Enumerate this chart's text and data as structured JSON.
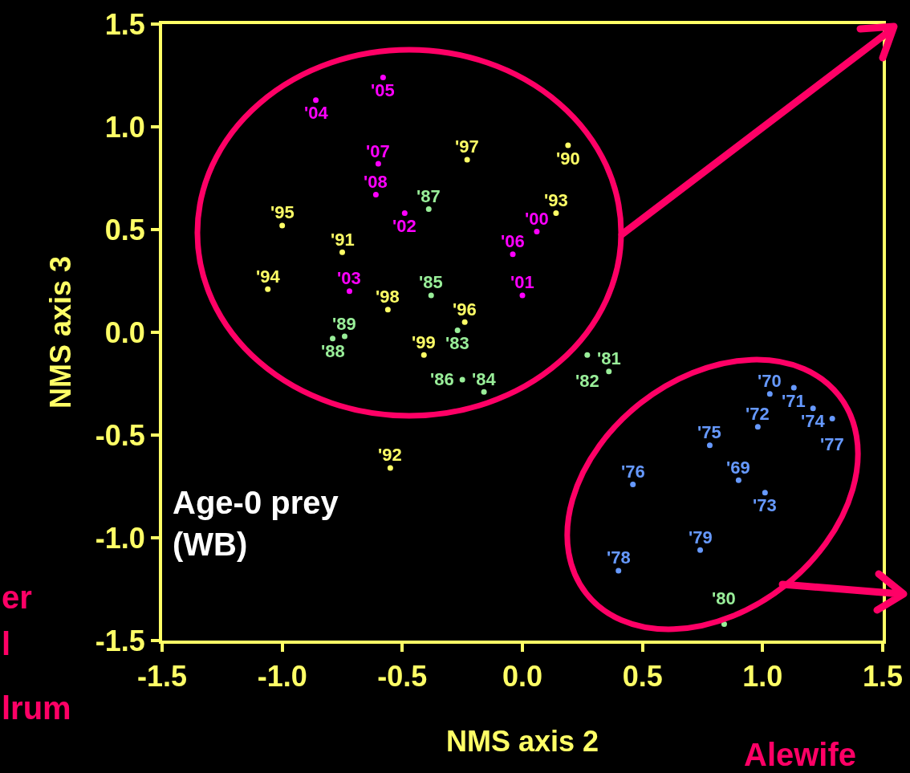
{
  "chart_data": {
    "type": "scatter",
    "xlabel": "NMS axis 2",
    "ylabel": "NMS axis 3",
    "marker": "circle",
    "grid": false,
    "xlim": [
      -1.5,
      1.5
    ],
    "ylim": [
      -1.5,
      1.5
    ],
    "xticks": [
      {
        "value": -1.5,
        "label": "-1.5"
      },
      {
        "value": -1,
        "label": "-1.0"
      },
      {
        "value": -0.5,
        "label": "-0.5"
      },
      {
        "value": 0,
        "label": "0.0"
      },
      {
        "value": 0.5,
        "label": "0.5"
      },
      {
        "value": 1,
        "label": "1.0"
      },
      {
        "value": 1.5,
        "label": "1.5"
      }
    ],
    "yticks": [
      {
        "value": -1.5,
        "label": "-1.5"
      },
      {
        "value": -1,
        "label": "-1.0"
      },
      {
        "value": -0.5,
        "label": "-0.5"
      },
      {
        "value": 0,
        "label": "0.0"
      },
      {
        "value": 0.5,
        "label": "0.5"
      },
      {
        "value": 1,
        "label": "1.0"
      },
      {
        "value": 1.5,
        "label": "1.5"
      }
    ],
    "series": [
      {
        "color": "#6699ff",
        "x": [
          0.9,
          1.03,
          1.13,
          0.98,
          1.01,
          1.21,
          0.78,
          0.46,
          1.29,
          0.4,
          0.74
        ],
        "values": [
          -0.72,
          -0.3,
          -0.27,
          -0.46,
          -0.78,
          -0.37,
          -0.55,
          -0.74,
          -0.42,
          -1.16,
          -1.06
        ]
      },
      {
        "color": "#99ee99",
        "x": [
          0.84,
          0.36,
          0.27,
          -0.27,
          -0.16,
          -0.38,
          -0.25,
          -0.39,
          -0.79,
          -0.74
        ],
        "values": [
          -1.42,
          -0.19,
          -0.11,
          0.01,
          -0.29,
          0.18,
          -0.23,
          0.6,
          -0.03,
          -0.02
        ]
      },
      {
        "color": "#ffff66",
        "x": [
          0.19,
          -0.75,
          -0.55,
          0.14,
          -1.06,
          -1.0,
          -0.24,
          -0.23,
          -0.56,
          -0.41
        ],
        "values": [
          0.91,
          0.39,
          -0.66,
          0.58,
          0.21,
          0.52,
          0.05,
          0.84,
          0.11,
          -0.11
        ]
      },
      {
        "color": "#ff00ff",
        "x": [
          0.06,
          0.0,
          -0.49,
          -0.72,
          -0.86,
          -0.58,
          -0.04,
          -0.6,
          -0.61
        ],
        "values": [
          0.49,
          0.18,
          0.58,
          0.2,
          1.13,
          1.24,
          0.38,
          0.82,
          0.67
        ]
      }
    ],
    "annotations": [
      "Age-0 prey\n(WB)",
      "Alewife",
      "er",
      "l",
      "lrum",
      {
        "text": "'69",
        "x": 0.9,
        "y": -0.72
      },
      {
        "text": "'70",
        "x": 1.03,
        "y": -0.3
      },
      {
        "text": "'71",
        "x": 1.13,
        "y": -0.27
      },
      {
        "text": "'72",
        "x": 0.98,
        "y": -0.46
      },
      {
        "text": "'73",
        "x": 1.01,
        "y": -0.78
      },
      {
        "text": "'74",
        "x": 1.21,
        "y": -0.37
      },
      {
        "text": "'75",
        "x": 0.78,
        "y": -0.55
      },
      {
        "text": "'76",
        "x": 0.46,
        "y": -0.74
      },
      {
        "text": "'77",
        "x": 1.29,
        "y": -0.42
      },
      {
        "text": "'78",
        "x": 0.4,
        "y": -1.16
      },
      {
        "text": "'79",
        "x": 0.74,
        "y": -1.06
      },
      {
        "text": "'80",
        "x": 0.84,
        "y": -1.42
      },
      {
        "text": "'81",
        "x": 0.36,
        "y": -0.19
      },
      {
        "text": "'82",
        "x": 0.27,
        "y": -0.11
      },
      {
        "text": "'83",
        "x": -0.27,
        "y": 0.01
      },
      {
        "text": "'84",
        "x": -0.16,
        "y": -0.29
      },
      {
        "text": "'85",
        "x": -0.38,
        "y": 0.18
      },
      {
        "text": "'86",
        "x": -0.25,
        "y": -0.23
      },
      {
        "text": "'87",
        "x": -0.39,
        "y": 0.6
      },
      {
        "text": "'88",
        "x": -0.79,
        "y": -0.03
      },
      {
        "text": "'89",
        "x": -0.74,
        "y": -0.02
      },
      {
        "text": "'90",
        "x": 0.19,
        "y": 0.91
      },
      {
        "text": "'91",
        "x": -0.75,
        "y": 0.39
      },
      {
        "text": "'92",
        "x": -0.55,
        "y": -0.66
      },
      {
        "text": "'93",
        "x": 0.14,
        "y": 0.58
      },
      {
        "text": "'94",
        "x": -1.06,
        "y": 0.21
      },
      {
        "text": "'95",
        "x": -1.0,
        "y": 0.52
      },
      {
        "text": "'96",
        "x": -0.24,
        "y": 0.05
      },
      {
        "text": "'97",
        "x": -0.23,
        "y": 0.84
      },
      {
        "text": "'98",
        "x": -0.56,
        "y": 0.11
      },
      {
        "text": "'99",
        "x": -0.41,
        "y": -0.11
      },
      {
        "text": "'00",
        "x": 0.06,
        "y": 0.49
      },
      {
        "text": "'01",
        "x": 0.0,
        "y": 0.18
      },
      {
        "text": "'02",
        "x": -0.49,
        "y": 0.58
      },
      {
        "text": "'03",
        "x": -0.72,
        "y": 0.2
      },
      {
        "text": "'04",
        "x": -0.86,
        "y": 1.13
      },
      {
        "text": "'05",
        "x": -0.58,
        "y": 1.24
      },
      {
        "text": "'06",
        "x": -0.04,
        "y": 0.38
      },
      {
        "text": "'07",
        "x": -0.6,
        "y": 0.82
      },
      {
        "text": "'08",
        "x": -0.61,
        "y": 0.67
      }
    ]
  }
}
